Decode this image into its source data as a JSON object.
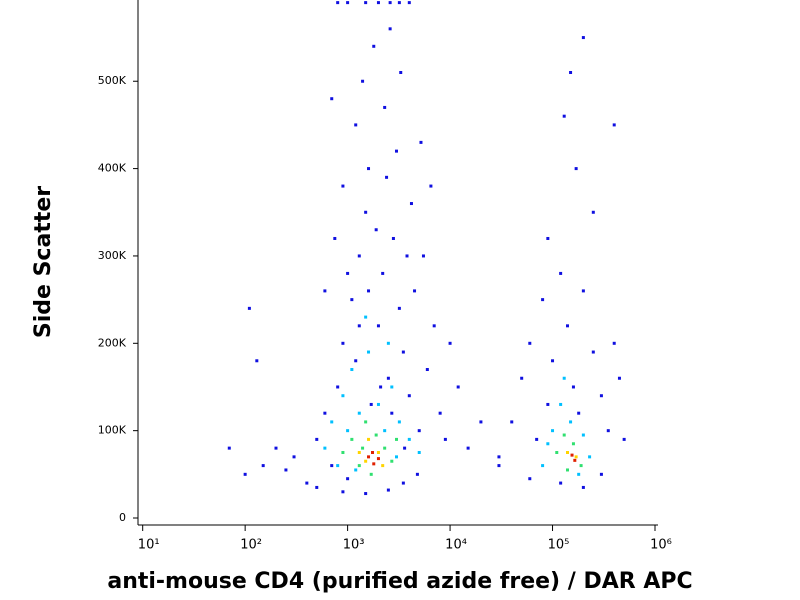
{
  "chart_data": {
    "type": "scatter",
    "xlabel": "anti-mouse CD4 (purified azide free) / DAR APC",
    "ylabel": "Side Scatter",
    "xscale": "log",
    "xlim": [
      9,
      1070000
    ],
    "xticks": [
      {
        "value": 10,
        "label": "10¹"
      },
      {
        "value": 100,
        "label": "10²"
      },
      {
        "value": 1000,
        "label": "10³"
      },
      {
        "value": 10000,
        "label": "10⁴"
      },
      {
        "value": 100000,
        "label": "10⁵"
      },
      {
        "value": 1000000,
        "label": "10⁶"
      }
    ],
    "ylim": [
      -8000,
      593000
    ],
    "yticks": [
      0,
      {
        "value": 100000,
        "label": "100K"
      },
      {
        "value": 200000,
        "label": "200K"
      },
      {
        "value": 300000,
        "label": "300K"
      },
      {
        "value": 400000,
        "label": "400K"
      },
      {
        "value": 500000,
        "label": "500K"
      }
    ],
    "series": [
      {
        "color": "#1010e0",
        "x": [
          400,
          500,
          600,
          700,
          800,
          900,
          1000,
          1100,
          1200,
          1300,
          1500,
          1600,
          1700,
          2000,
          2200,
          2500,
          2800,
          3000,
          3200,
          3500,
          4000,
          4500,
          5000,
          5500,
          6000,
          7000,
          8000,
          9000,
          12000,
          15000,
          20000,
          30000,
          300,
          250,
          200,
          150,
          100,
          70,
          110,
          130,
          600,
          750,
          900,
          1200,
          1400,
          1800,
          2300,
          2600,
          3300,
          4200,
          5200,
          700,
          1900,
          2400,
          3800,
          6500,
          10000,
          1000,
          1300,
          1600,
          2100,
          2700,
          3600,
          4800,
          500,
          900,
          1500,
          2500,
          3500,
          1000,
          1500,
          2000,
          2600,
          3200,
          4000,
          800,
          30000,
          40000,
          50000,
          60000,
          70000,
          80000,
          90000,
          100000,
          120000,
          140000,
          160000,
          180000,
          200000,
          250000,
          300000,
          350000,
          400000,
          450000,
          500000,
          120000,
          200000,
          300000,
          60000,
          150000,
          170000,
          250000,
          400000,
          90000,
          130000,
          200000
        ],
        "y": [
          40000,
          90000,
          120000,
          60000,
          150000,
          200000,
          45000,
          250000,
          180000,
          300000,
          350000,
          400000,
          130000,
          220000,
          280000,
          160000,
          320000,
          420000,
          240000,
          190000,
          140000,
          260000,
          100000,
          300000,
          170000,
          220000,
          120000,
          90000,
          150000,
          80000,
          110000,
          60000,
          70000,
          55000,
          80000,
          60000,
          50000,
          80000,
          240000,
          180000,
          260000,
          320000,
          380000,
          450000,
          500000,
          540000,
          470000,
          560000,
          510000,
          360000,
          430000,
          480000,
          330000,
          390000,
          300000,
          380000,
          200000,
          280000,
          220000,
          260000,
          150000,
          120000,
          80000,
          50000,
          35000,
          30000,
          28000,
          32000,
          40000,
          590000,
          590000,
          590000,
          590000,
          590000,
          590000,
          590000,
          70000,
          110000,
          160000,
          200000,
          90000,
          250000,
          130000,
          180000,
          280000,
          220000,
          150000,
          120000,
          260000,
          190000,
          140000,
          100000,
          200000,
          160000,
          90000,
          40000,
          35000,
          50000,
          45000,
          510000,
          400000,
          350000,
          450000,
          320000,
          460000,
          550000
        ]
      },
      {
        "color": "#00c0ff",
        "x": [
          600,
          700,
          900,
          1000,
          1100,
          1300,
          1600,
          2000,
          2300,
          2700,
          3200,
          4000,
          1500,
          2500,
          800,
          3000,
          1200,
          5000,
          80000,
          100000,
          120000,
          150000,
          200000,
          230000,
          130000,
          90000,
          180000
        ],
        "y": [
          80000,
          110000,
          140000,
          100000,
          170000,
          120000,
          190000,
          130000,
          100000,
          150000,
          110000,
          90000,
          230000,
          200000,
          60000,
          70000,
          55000,
          75000,
          60000,
          100000,
          130000,
          110000,
          95000,
          70000,
          160000,
          85000,
          50000
        ]
      },
      {
        "color": "#30e070",
        "x": [
          900,
          1100,
          1300,
          1500,
          1900,
          2300,
          2700,
          1400,
          3000,
          1700,
          110000,
          130000,
          160000,
          190000,
          140000
        ],
        "y": [
          75000,
          90000,
          60000,
          110000,
          95000,
          80000,
          65000,
          80000,
          90000,
          50000,
          75000,
          95000,
          85000,
          60000,
          55000
        ]
      },
      {
        "color": "#ffd400",
        "x": [
          1300,
          1600,
          2000,
          2200,
          1500,
          140000,
          170000
        ],
        "y": [
          75000,
          90000,
          75000,
          60000,
          65000,
          75000,
          70000
        ]
      },
      {
        "color": "#e02000",
        "x": [
          1600,
          1800,
          2000,
          1750,
          155000,
          165000
        ],
        "y": [
          70000,
          62000,
          68000,
          75000,
          72000,
          66000
        ]
      }
    ]
  }
}
